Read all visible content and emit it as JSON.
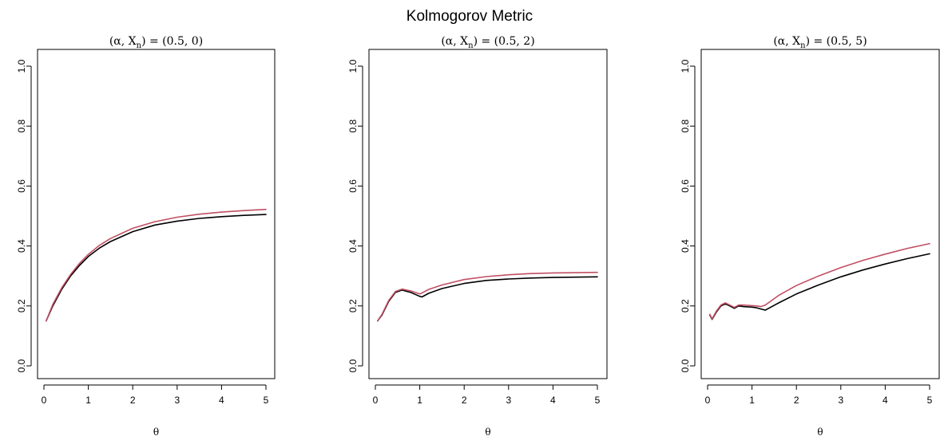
{
  "chart_data": {
    "type": "line",
    "title": "Kolmogorov Metric",
    "colors": {
      "black_series": "#000000",
      "red_series": "#c14f63"
    },
    "panels": [
      {
        "title": "(α, Xn) = (0.5, 0)",
        "xlabel": "θ",
        "ylabel": "",
        "xlim": [
          0,
          5
        ],
        "ylim": [
          0,
          1
        ],
        "xticks": [
          0,
          1,
          2,
          3,
          4,
          5
        ],
        "yticks": [
          0.0,
          0.2,
          0.4,
          0.6,
          0.8,
          1.0
        ],
        "x": [
          0.05,
          0.2,
          0.4,
          0.6,
          0.8,
          1.0,
          1.25,
          1.5,
          2.0,
          2.5,
          3.0,
          3.5,
          4.0,
          4.5,
          5.0
        ],
        "series": [
          {
            "color": "black_series",
            "values": [
              0.15,
              0.2,
              0.255,
              0.3,
              0.335,
              0.365,
              0.393,
              0.415,
              0.448,
              0.47,
              0.483,
              0.492,
              0.498,
              0.502,
              0.505
            ]
          },
          {
            "color": "red_series",
            "values": [
              0.15,
              0.205,
              0.26,
              0.305,
              0.342,
              0.372,
              0.402,
              0.425,
              0.459,
              0.481,
              0.496,
              0.506,
              0.513,
              0.518,
              0.522
            ]
          }
        ]
      },
      {
        "title": "(α, Xn) = (0.5, 2)",
        "xlabel": "θ",
        "ylabel": "",
        "xlim": [
          0,
          5
        ],
        "ylim": [
          0,
          1
        ],
        "xticks": [
          0,
          1,
          2,
          3,
          4,
          5
        ],
        "yticks": [
          0.0,
          0.2,
          0.4,
          0.6,
          0.8,
          1.0
        ],
        "x": [
          0.05,
          0.15,
          0.3,
          0.45,
          0.6,
          0.8,
          1.0,
          1.05,
          1.2,
          1.5,
          2.0,
          2.5,
          3.0,
          3.5,
          4.0,
          4.5,
          5.0
        ],
        "series": [
          {
            "color": "black_series",
            "values": [
              0.15,
              0.17,
              0.215,
              0.245,
              0.253,
              0.245,
              0.232,
              0.23,
              0.242,
              0.258,
              0.275,
              0.285,
              0.29,
              0.293,
              0.295,
              0.296,
              0.297
            ]
          },
          {
            "color": "red_series",
            "values": [
              0.15,
              0.172,
              0.218,
              0.248,
              0.256,
              0.25,
              0.24,
              0.243,
              0.255,
              0.27,
              0.288,
              0.298,
              0.304,
              0.308,
              0.31,
              0.311,
              0.312
            ]
          }
        ]
      },
      {
        "title": "(α, Xn) = (0.5, 5)",
        "xlabel": "θ",
        "ylabel": "",
        "xlim": [
          0,
          5
        ],
        "ylim": [
          0,
          1
        ],
        "xticks": [
          0,
          1,
          2,
          3,
          4,
          5
        ],
        "yticks": [
          0.0,
          0.2,
          0.4,
          0.6,
          0.8,
          1.0
        ],
        "x": [
          0.05,
          0.1,
          0.2,
          0.3,
          0.4,
          0.5,
          0.6,
          0.7,
          0.8,
          0.9,
          1.0,
          1.1,
          1.2,
          1.3,
          1.6,
          2.0,
          2.5,
          3.0,
          3.5,
          4.0,
          4.5,
          5.0
        ],
        "series": [
          {
            "color": "black_series",
            "values": [
              0.17,
              0.155,
              0.18,
              0.2,
              0.207,
              0.2,
              0.192,
              0.2,
              0.198,
              0.197,
              0.196,
              0.194,
              0.19,
              0.186,
              0.21,
              0.24,
              0.27,
              0.297,
              0.32,
              0.34,
              0.358,
              0.374
            ]
          },
          {
            "color": "red_series",
            "values": [
              0.172,
              0.157,
              0.183,
              0.203,
              0.21,
              0.203,
              0.195,
              0.203,
              0.203,
              0.202,
              0.201,
              0.2,
              0.198,
              0.203,
              0.235,
              0.268,
              0.3,
              0.328,
              0.352,
              0.373,
              0.392,
              0.408
            ]
          }
        ]
      }
    ]
  }
}
